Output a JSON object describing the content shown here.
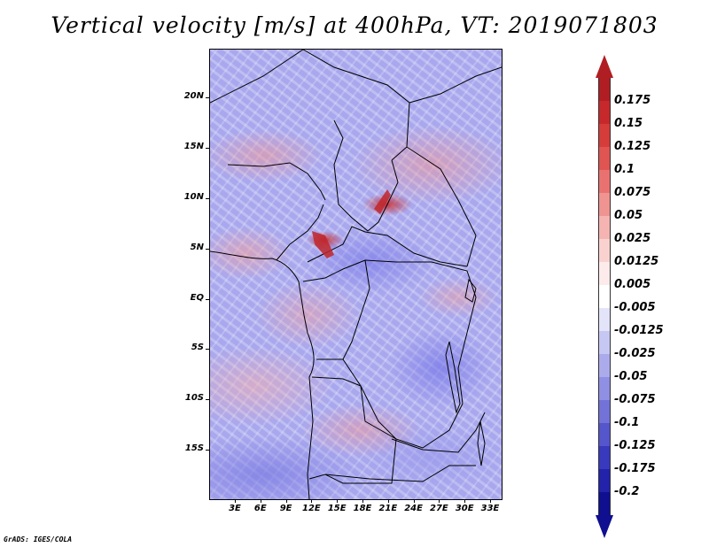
{
  "title": "Vertical velocity [m/s] at 400hPa, VT: 2019071803",
  "credit": "GrADS: IGES/COLA",
  "map": {
    "region": "Central Africa",
    "lat_labels": [
      "20N",
      "15N",
      "10N",
      "5N",
      "EQ",
      "5S",
      "10S",
      "15S"
    ],
    "lon_labels": [
      "3E",
      "6E",
      "9E",
      "12E",
      "15E",
      "18E",
      "21E",
      "24E",
      "27E",
      "30E",
      "33E"
    ]
  },
  "colorbar": {
    "labels": [
      "0.175",
      "0.15",
      "0.125",
      "0.1",
      "0.075",
      "0.05",
      "0.025",
      "0.0125",
      "0.005",
      "-0.005",
      "-0.0125",
      "-0.025",
      "-0.05",
      "-0.075",
      "-0.1",
      "-0.125",
      "-0.175",
      "-0.2"
    ],
    "colors": [
      "#b01e24",
      "#c7282c",
      "#d53c3a",
      "#e05452",
      "#e97270",
      "#f09491",
      "#f5b4b1",
      "#f9d2cf",
      "#fcebea",
      "#ffffff",
      "#e3e3fa",
      "#c7c7f3",
      "#ababec",
      "#8f8fe3",
      "#7272d8",
      "#5555cc",
      "#3939bd",
      "#2222aa",
      "#0f0f90"
    ]
  }
}
